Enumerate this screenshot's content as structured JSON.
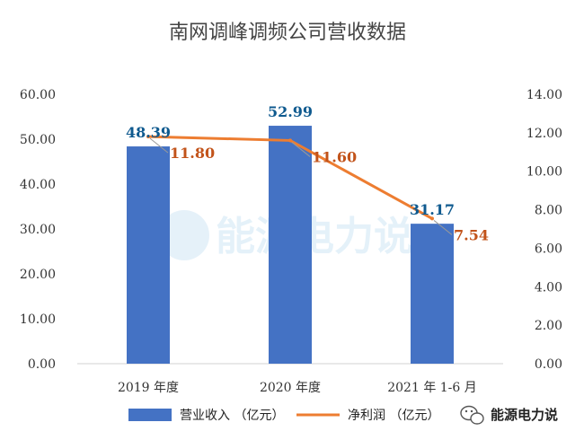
{
  "colors": {
    "bar": "#4472c4",
    "line": "#ed7d31",
    "bar_label": "#0f5a8f",
    "line_label": "#c2531a",
    "title": "#444444",
    "watermark": "#2d8fcf"
  },
  "watermark": {
    "text": "能源电力说"
  },
  "footer": {
    "brand": "能源电力说",
    "icon": "wechat-icon"
  },
  "chart_data": {
    "type": "bar",
    "title": "南网调峰调频公司营收数据",
    "categories": [
      "2019 年度",
      "2020 年度",
      "2021 年 1-6 月"
    ],
    "series": [
      {
        "name": "营业收入 （亿元）",
        "type": "bar",
        "axis": "left",
        "values": [
          48.39,
          52.99,
          31.17
        ],
        "labels": [
          "48.39",
          "52.99",
          "31.17"
        ]
      },
      {
        "name": "净利润 （亿元）",
        "type": "line",
        "axis": "right",
        "values": [
          11.8,
          11.6,
          7.54
        ],
        "labels": [
          "11.80",
          "11.60",
          "7.54"
        ]
      }
    ],
    "y_left": {
      "min": 0,
      "max": 60,
      "step": 10,
      "tick_labels": [
        "0.00",
        "10.00",
        "20.00",
        "30.00",
        "40.00",
        "50.00",
        "60.00"
      ]
    },
    "y_right": {
      "min": 0,
      "max": 14,
      "step": 2,
      "tick_labels": [
        "0.00",
        "2.00",
        "4.00",
        "6.00",
        "8.00",
        "10.00",
        "12.00",
        "14.00"
      ]
    },
    "grid": false,
    "legend_position": "bottom"
  }
}
